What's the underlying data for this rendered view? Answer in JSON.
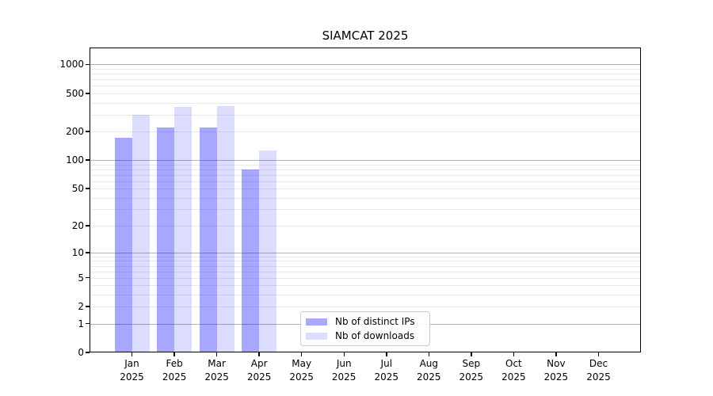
{
  "chart_data": {
    "type": "bar",
    "title": "SIAMCAT 2025",
    "xlabel": "",
    "ylabel": "",
    "categories": [
      "Jan 2025",
      "Feb 2025",
      "Mar 2025",
      "Apr 2025",
      "May 2025",
      "Jun 2025",
      "Jul 2025",
      "Aug 2025",
      "Sep 2025",
      "Oct 2025",
      "Nov 2025",
      "Dec 2025"
    ],
    "series": [
      {
        "name": "Nb of distinct IPs",
        "color": "rgba(0,0,255,0.345)",
        "legend_color": "#a9a9fa",
        "values": [
          170,
          220,
          220,
          80,
          0,
          0,
          0,
          0,
          0,
          0,
          0,
          0
        ]
      },
      {
        "name": "Nb of downloads",
        "color": "rgba(0,0,255,0.137)",
        "legend_color": "#dcdcfb",
        "values": [
          300,
          360,
          370,
          127,
          0,
          0,
          0,
          0,
          0,
          0,
          0,
          0
        ]
      }
    ],
    "yscale": "log1p",
    "ylim": [
      0,
      1500
    ],
    "yticks": [
      0,
      1,
      2,
      5,
      10,
      20,
      50,
      100,
      200,
      500,
      1000
    ],
    "grid": {
      "major": [
        1,
        10,
        100,
        1000
      ],
      "minor": [
        2,
        3,
        4,
        5,
        6,
        7,
        8,
        9,
        20,
        30,
        40,
        50,
        60,
        70,
        80,
        90,
        200,
        300,
        400,
        500,
        600,
        700,
        800,
        900
      ]
    },
    "legend": {
      "position": "lower center-left",
      "labels": [
        "Nb of distinct IPs",
        "Nb of downloads"
      ]
    }
  },
  "colors": {
    "background": "#ffffff",
    "axis": "#000000",
    "text": "#000000",
    "grid_major": "#b3b3b3",
    "grid_minor": "#eaeaea",
    "legend_border": "#cccccc"
  }
}
